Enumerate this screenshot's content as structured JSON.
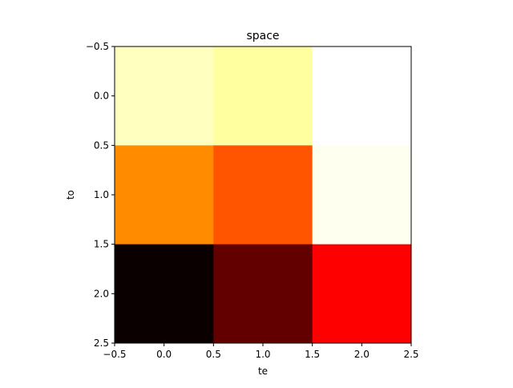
{
  "chart_data": {
    "type": "heatmap",
    "title": "space",
    "xlabel": "te",
    "ylabel": "to",
    "colormap": "hot",
    "x_range": [
      -0.5,
      2.5
    ],
    "y_range": [
      -0.5,
      2.5
    ],
    "y_inverted": true,
    "x_ticks": [
      "−0.5",
      "0.0",
      "0.5",
      "1.0",
      "1.5",
      "2.0",
      "2.5"
    ],
    "y_ticks": [
      "−0.5",
      "0.0",
      "0.5",
      "1.0",
      "1.5",
      "2.0",
      "2.5"
    ],
    "x_tick_values": [
      -0.5,
      0.0,
      0.5,
      1.0,
      1.5,
      2.0,
      2.5
    ],
    "y_tick_values": [
      -0.5,
      0.0,
      0.5,
      1.0,
      1.5,
      2.0,
      2.5
    ],
    "grid": false,
    "cells": [
      [
        0.88,
        0.83,
        1.0
      ],
      [
        0.45,
        0.36,
        0.99
      ],
      [
        0.03,
        0.18,
        0.31
      ]
    ],
    "cell_colors": [
      [
        "#ffffc0",
        "#ffffa0",
        "#ffffff"
      ],
      [
        "#ff8c00",
        "#ff5500",
        "#fffff0"
      ],
      [
        "#0b0000",
        "#620000",
        "#ff0000"
      ]
    ]
  }
}
